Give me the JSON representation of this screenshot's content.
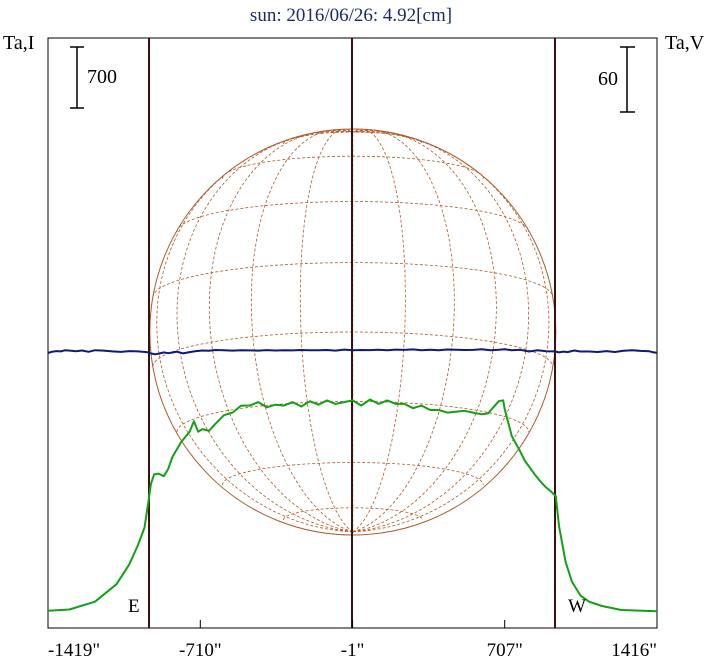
{
  "chart_data": {
    "type": "line",
    "title": "sun: 2016/06/26: 4.92[cm]",
    "left_axis_label": "Ta,I",
    "right_axis_label": "Ta,V",
    "left_scale_bar_value": 700,
    "right_scale_bar_value": 60,
    "east_label": "E",
    "west_label": "W",
    "x_ticks": [
      {
        "value": -1419,
        "label": "-1419\""
      },
      {
        "value": -710,
        "label": "-710\""
      },
      {
        "value": -1,
        "label": "-1\""
      },
      {
        "value": 707,
        "label": "707\""
      },
      {
        "value": 1416,
        "label": "1416\""
      }
    ],
    "xlim": [
      -1419,
      1416
    ],
    "limb_arcsec": [
      -945,
      945
    ],
    "grid": false,
    "colors": {
      "title": "#1a2a6c",
      "frame": "#000000",
      "limb_lines": "#3a1010",
      "intensity": "#14a014",
      "polarization": "#0a1a80",
      "disk": "#b05a28"
    },
    "series": [
      {
        "name": "I",
        "x": [
          -1419,
          -1320,
          -1200,
          -1100,
          -1040,
          -1000,
          -970,
          -950,
          -940,
          -925,
          -905,
          -880,
          -860,
          -840,
          -800,
          -760,
          -740,
          -720,
          -700,
          -670,
          -640,
          -600,
          -560,
          -520,
          -480,
          -440,
          -400,
          -360,
          -320,
          -280,
          -240,
          -200,
          -160,
          -120,
          -80,
          -40,
          -1,
          40,
          80,
          120,
          160,
          200,
          240,
          280,
          320,
          360,
          400,
          440,
          480,
          520,
          560,
          600,
          630,
          650,
          680,
          700,
          707,
          740,
          780,
          800,
          820,
          850,
          880,
          900,
          920,
          945,
          960,
          990,
          1020,
          1060,
          1100,
          1160,
          1250,
          1416
        ],
        "y": [
          25,
          40,
          130,
          330,
          560,
          780,
          980,
          1300,
          1480,
          1590,
          1600,
          1570,
          1650,
          1790,
          1960,
          2080,
          2200,
          2080,
          2110,
          2090,
          2170,
          2270,
          2300,
          2380,
          2380,
          2420,
          2360,
          2390,
          2380,
          2420,
          2370,
          2430,
          2390,
          2440,
          2400,
          2420,
          2440,
          2380,
          2450,
          2400,
          2440,
          2400,
          2400,
          2350,
          2380,
          2330,
          2330,
          2300,
          2310,
          2320,
          2300,
          2280,
          2290,
          2350,
          2430,
          2440,
          2340,
          2030,
          1850,
          1750,
          1680,
          1580,
          1490,
          1440,
          1400,
          1340,
          1000,
          590,
          360,
          200,
          130,
          80,
          35,
          20
        ]
      },
      {
        "name": "V",
        "x": [
          -1419,
          -1400,
          -1380,
          -1360,
          -1340,
          -1310,
          -1290,
          -1260,
          -1230,
          -1200,
          -1160,
          -1120,
          -1080,
          -1040,
          -1000,
          -960,
          -940,
          -920,
          -900,
          -880,
          -860,
          -840,
          -820,
          -790,
          -760,
          -730,
          -700,
          -670,
          -640,
          -600,
          -560,
          -520,
          -480,
          -440,
          -400,
          -360,
          -320,
          -280,
          -240,
          -200,
          -160,
          -120,
          -80,
          -40,
          -1,
          40,
          80,
          120,
          160,
          200,
          240,
          280,
          320,
          360,
          400,
          440,
          480,
          520,
          560,
          600,
          640,
          680,
          707,
          740,
          780,
          820,
          860,
          900,
          940,
          960,
          980,
          1000,
          1030,
          1060,
          1100,
          1140,
          1180,
          1220,
          1260,
          1300,
          1340,
          1380,
          1400,
          1416
        ],
        "y": [
          0,
          1.2,
          1.8,
          1.5,
          2.5,
          2.0,
          1.6,
          2.3,
          1.1,
          2.6,
          2.2,
          1.5,
          1.0,
          1.8,
          1.5,
          0.8,
          -0.4,
          -1.2,
          -0.5,
          0.6,
          -0.2,
          0.5,
          1.2,
          -0.4,
          0.8,
          1.8,
          2.3,
          2.0,
          2.8,
          2.5,
          2.2,
          2.6,
          2.4,
          2.2,
          2.7,
          2.3,
          2.6,
          2.4,
          2.8,
          2.6,
          2.5,
          2.8,
          2.2,
          3.1,
          2.6,
          2.8,
          2.7,
          3.0,
          2.6,
          3.1,
          2.9,
          3.3,
          2.6,
          3.0,
          2.5,
          3.2,
          3.0,
          2.8,
          2.9,
          3.4,
          2.5,
          3.0,
          3.4,
          2.5,
          3.0,
          1.4,
          2.6,
          1.7,
          1.5,
          0.6,
          1.3,
          0.8,
          2.3,
          1.4,
          1.4,
          0.9,
          1.8,
          0.9,
          2.1,
          2.6,
          1.9,
          1.6,
          0.6,
          0.2
        ]
      }
    ]
  }
}
